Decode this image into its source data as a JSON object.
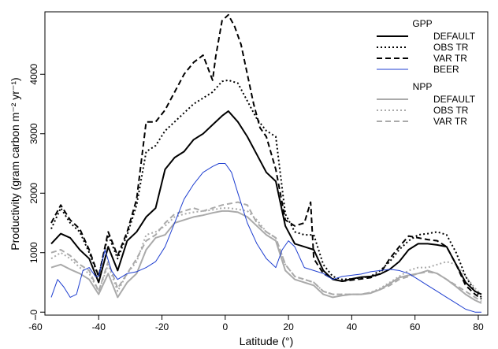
{
  "chart_data": {
    "type": "line",
    "title": "",
    "xlabel": "Latitude (°)",
    "ylabel": "Productivity (gram carbon m⁻² yr⁻¹)",
    "xlim": [
      -57,
      83
    ],
    "ylim": [
      -50,
      5050
    ],
    "xticks": [
      -60,
      -40,
      -20,
      0,
      20,
      40,
      60,
      80
    ],
    "yticks": [
      0,
      1000,
      2000,
      3000,
      4000
    ],
    "grid": false,
    "legend": {
      "placement": "top-right",
      "groups": [
        {
          "title": "GPP",
          "entries": [
            "DEFAULT",
            "OBS TR",
            "VAR TR",
            "BEER"
          ]
        },
        {
          "title": "NPP",
          "entries": [
            "DEFAULT",
            "OBS TR",
            "VAR TR"
          ]
        }
      ]
    },
    "series": [
      {
        "name": "DEFAULT",
        "group": "GPP",
        "color": "#000000",
        "dash": "solid",
        "x": [
          -55,
          -52,
          -49,
          -46,
          -43,
          -40,
          -37,
          -34,
          -31,
          -28,
          -25,
          -22,
          -19,
          -16,
          -13,
          -10,
          -7,
          -4,
          -1,
          1,
          4,
          7,
          10,
          13,
          16,
          19,
          22,
          25,
          28,
          31,
          34,
          37,
          40,
          43,
          46,
          49,
          52,
          55,
          58,
          61,
          64,
          67,
          70,
          73,
          76,
          79,
          81
        ],
        "y": [
          1150,
          1320,
          1250,
          1050,
          900,
          500,
          1100,
          700,
          1200,
          1350,
          1600,
          1750,
          2400,
          2600,
          2700,
          2900,
          3000,
          3150,
          3300,
          3380,
          3200,
          2950,
          2650,
          2350,
          2200,
          1450,
          1150,
          1100,
          1050,
          700,
          550,
          520,
          560,
          590,
          600,
          640,
          720,
          850,
          1050,
          1150,
          1150,
          1130,
          1100,
          800,
          500,
          350,
          300
        ]
      },
      {
        "name": "OBS TR",
        "group": "GPP",
        "color": "#000000",
        "dash": "dotted",
        "x": [
          -55,
          -52,
          -49,
          -46,
          -43,
          -40,
          -37,
          -34,
          -31,
          -28,
          -25,
          -22,
          -19,
          -16,
          -13,
          -10,
          -7,
          -4,
          -1,
          1,
          4,
          7,
          10,
          13,
          16,
          19,
          22,
          25,
          28,
          31,
          34,
          37,
          40,
          43,
          46,
          49,
          52,
          55,
          58,
          61,
          64,
          67,
          70,
          73,
          76,
          79,
          81
        ],
        "y": [
          1400,
          1750,
          1500,
          1350,
          1000,
          600,
          1300,
          900,
          1300,
          1800,
          2700,
          2800,
          3050,
          3200,
          3350,
          3500,
          3600,
          3700,
          3880,
          3900,
          3850,
          3550,
          3250,
          3050,
          2950,
          1650,
          1350,
          1300,
          1300,
          800,
          600,
          550,
          560,
          580,
          600,
          700,
          850,
          1050,
          1200,
          1300,
          1320,
          1350,
          1300,
          1000,
          600,
          350,
          250
        ]
      },
      {
        "name": "VAR TR",
        "group": "GPP",
        "color": "#000000",
        "dash": "dashed",
        "x": [
          -55,
          -52,
          -49,
          -46,
          -43,
          -40,
          -37,
          -34,
          -31,
          -28,
          -25,
          -22,
          -19,
          -16,
          -13,
          -10,
          -7,
          -4,
          -3,
          -1,
          1,
          3,
          5,
          7,
          9,
          11,
          13,
          16,
          19,
          22,
          25,
          27,
          28,
          31,
          34,
          37,
          40,
          43,
          46,
          49,
          52,
          55,
          58,
          61,
          64,
          67,
          70,
          73,
          76,
          79,
          81
        ],
        "y": [
          1500,
          1800,
          1550,
          1400,
          1050,
          600,
          1350,
          950,
          1350,
          1900,
          3200,
          3200,
          3400,
          3700,
          4000,
          4200,
          4320,
          3900,
          4300,
          4900,
          5000,
          4800,
          4500,
          4000,
          3500,
          3100,
          2950,
          2400,
          1550,
          1450,
          1500,
          1850,
          900,
          650,
          560,
          520,
          540,
          560,
          580,
          650,
          900,
          1100,
          1280,
          1250,
          1220,
          1200,
          1100,
          800,
          450,
          300,
          220
        ]
      },
      {
        "name": "BEER",
        "group": "GPP",
        "color": "#1f3fd0",
        "dash": "solid",
        "x": [
          -55,
          -53,
          -51,
          -49,
          -47,
          -45,
          -43,
          -41,
          -40,
          -38,
          -36,
          -34,
          -31,
          -28,
          -25,
          -22,
          -19,
          -16,
          -13,
          -10,
          -7,
          -4,
          -2,
          0,
          2,
          4,
          7,
          10,
          13,
          16,
          18,
          20,
          22,
          25,
          28,
          31,
          34,
          37,
          40,
          43,
          46,
          49,
          52,
          55,
          58,
          61,
          64,
          67,
          70,
          73,
          76,
          79,
          81
        ],
        "y": [
          250,
          550,
          420,
          250,
          300,
          700,
          750,
          600,
          600,
          1050,
          700,
          550,
          650,
          680,
          750,
          850,
          1100,
          1500,
          1900,
          2150,
          2350,
          2450,
          2500,
          2500,
          2350,
          2000,
          1500,
          1150,
          900,
          750,
          1050,
          1200,
          1100,
          750,
          700,
          650,
          550,
          600,
          620,
          640,
          680,
          700,
          720,
          700,
          650,
          550,
          450,
          350,
          250,
          150,
          50,
          0,
          0
        ]
      },
      {
        "name": "DEFAULT",
        "group": "NPP",
        "color": "#aaaaaa",
        "dash": "solid",
        "x": [
          -55,
          -52,
          -49,
          -46,
          -43,
          -40,
          -37,
          -34,
          -31,
          -28,
          -25,
          -22,
          -19,
          -16,
          -13,
          -10,
          -7,
          -4,
          -1,
          1,
          4,
          7,
          10,
          13,
          16,
          19,
          22,
          25,
          28,
          31,
          34,
          37,
          40,
          43,
          46,
          49,
          52,
          55,
          58,
          61,
          64,
          67,
          70,
          73,
          76,
          79,
          81
        ],
        "y": [
          750,
          800,
          720,
          650,
          550,
          300,
          650,
          250,
          500,
          650,
          1050,
          1250,
          1300,
          1500,
          1550,
          1600,
          1630,
          1670,
          1700,
          1700,
          1680,
          1600,
          1450,
          1300,
          1200,
          700,
          550,
          500,
          450,
          300,
          250,
          280,
          300,
          300,
          320,
          380,
          480,
          580,
          620,
          650,
          700,
          650,
          550,
          430,
          300,
          200,
          150
        ]
      },
      {
        "name": "OBS TR",
        "group": "NPP",
        "color": "#aaaaaa",
        "dash": "dotted",
        "x": [
          -55,
          -52,
          -49,
          -46,
          -43,
          -40,
          -37,
          -34,
          -31,
          -28,
          -25,
          -22,
          -19,
          -16,
          -13,
          -10,
          -7,
          -4,
          -1,
          1,
          4,
          7,
          10,
          13,
          16,
          19,
          22,
          25,
          28,
          31,
          34,
          37,
          40,
          43,
          46,
          49,
          52,
          55,
          58,
          61,
          64,
          67,
          70,
          73,
          76,
          79,
          81
        ],
        "y": [
          900,
          1000,
          900,
          750,
          650,
          350,
          800,
          350,
          650,
          850,
          1300,
          1350,
          1450,
          1600,
          1650,
          1680,
          1700,
          1720,
          1750,
          1750,
          1730,
          1700,
          1550,
          1350,
          1250,
          800,
          600,
          550,
          500,
          350,
          300,
          300,
          300,
          300,
          330,
          400,
          500,
          600,
          700,
          750,
          750,
          800,
          850,
          800,
          600,
          400,
          300
        ]
      },
      {
        "name": "VAR TR",
        "group": "NPP",
        "color": "#aaaaaa",
        "dash": "dashed",
        "x": [
          -55,
          -52,
          -49,
          -46,
          -43,
          -40,
          -37,
          -34,
          -31,
          -28,
          -25,
          -22,
          -19,
          -16,
          -13,
          -10,
          -7,
          -4,
          -1,
          1,
          4,
          7,
          10,
          13,
          16,
          19,
          22,
          25,
          28,
          31,
          34,
          37,
          40,
          43,
          46,
          49,
          52,
          55,
          58,
          61,
          64,
          67,
          70,
          73,
          76,
          79,
          81
        ],
        "y": [
          1000,
          1050,
          950,
          800,
          700,
          350,
          850,
          400,
          650,
          900,
          1200,
          1300,
          1500,
          1650,
          1700,
          1750,
          1700,
          1750,
          1800,
          1820,
          1850,
          1800,
          1500,
          1350,
          1250,
          800,
          600,
          550,
          500,
          350,
          300,
          300,
          300,
          300,
          330,
          380,
          450,
          550,
          600,
          650,
          680,
          650,
          550,
          450,
          350,
          250,
          180
        ]
      }
    ]
  }
}
